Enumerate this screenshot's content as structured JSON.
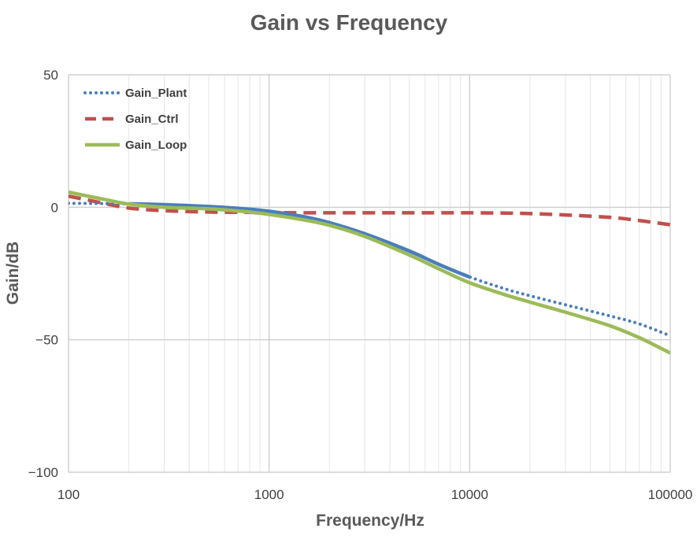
{
  "chart_data": {
    "type": "line",
    "title": "Gain vs Frequency",
    "xlabel": "Frequency/Hz",
    "ylabel": "Gain/dB",
    "x_scale": "log",
    "xlim": [
      100,
      100000
    ],
    "ylim": [
      -100,
      50
    ],
    "x_ticks": [
      100,
      1000,
      10000,
      100000
    ],
    "x_tick_labels": [
      "100",
      "1000",
      "10000",
      "100000"
    ],
    "y_ticks": [
      -100,
      -50,
      0,
      50
    ],
    "y_tick_labels": [
      "−100",
      "−50",
      "0",
      "50"
    ],
    "grid": true,
    "legend_position": "top-left",
    "colors": {
      "Gain_Plant": "#4a7ebb",
      "Gain_Ctrl": "#c0504d",
      "Gain_Loop": "#9bbb59",
      "grid_major": "#d0d0d0",
      "grid_minor": "#e6e6e6"
    },
    "series": [
      {
        "name": "Gain_Plant",
        "style": "dotted-solid",
        "solid_x_range": [
          200,
          10000
        ],
        "x": [
          100,
          150,
          200,
          300,
          500,
          700,
          1000,
          1500,
          2000,
          3000,
          5000,
          7000,
          10000,
          15000,
          20000,
          30000,
          50000,
          70000,
          100000
        ],
        "values": [
          1.5,
          1.4,
          1.3,
          1.0,
          0.3,
          -0.4,
          -1.5,
          -3.6,
          -5.8,
          -10.0,
          -16.5,
          -21.5,
          -26.3,
          -30.8,
          -33.4,
          -36.8,
          -41.0,
          -44.0,
          -48.5
        ]
      },
      {
        "name": "Gain_Ctrl",
        "style": "dashed",
        "x": [
          100,
          150,
          200,
          300,
          500,
          700,
          1000,
          1500,
          2000,
          3000,
          5000,
          7000,
          10000,
          15000,
          20000,
          30000,
          50000,
          70000,
          100000
        ],
        "values": [
          4.2,
          1.5,
          -0.3,
          -1.3,
          -1.8,
          -1.9,
          -2.0,
          -2.1,
          -2.1,
          -2.1,
          -2.1,
          -2.1,
          -2.1,
          -2.2,
          -2.4,
          -2.9,
          -3.8,
          -5.0,
          -6.6
        ]
      },
      {
        "name": "Gain_Loop",
        "style": "solid",
        "x": [
          100,
          150,
          200,
          300,
          500,
          700,
          1000,
          1500,
          2000,
          3000,
          5000,
          7000,
          10000,
          15000,
          20000,
          30000,
          50000,
          70000,
          100000
        ],
        "values": [
          5.7,
          3.0,
          1.2,
          0.0,
          -0.6,
          -1.4,
          -2.7,
          -4.8,
          -6.8,
          -11.0,
          -18.0,
          -23.2,
          -28.5,
          -33.0,
          -35.8,
          -39.6,
          -44.7,
          -49.2,
          -55.0
        ]
      }
    ]
  }
}
